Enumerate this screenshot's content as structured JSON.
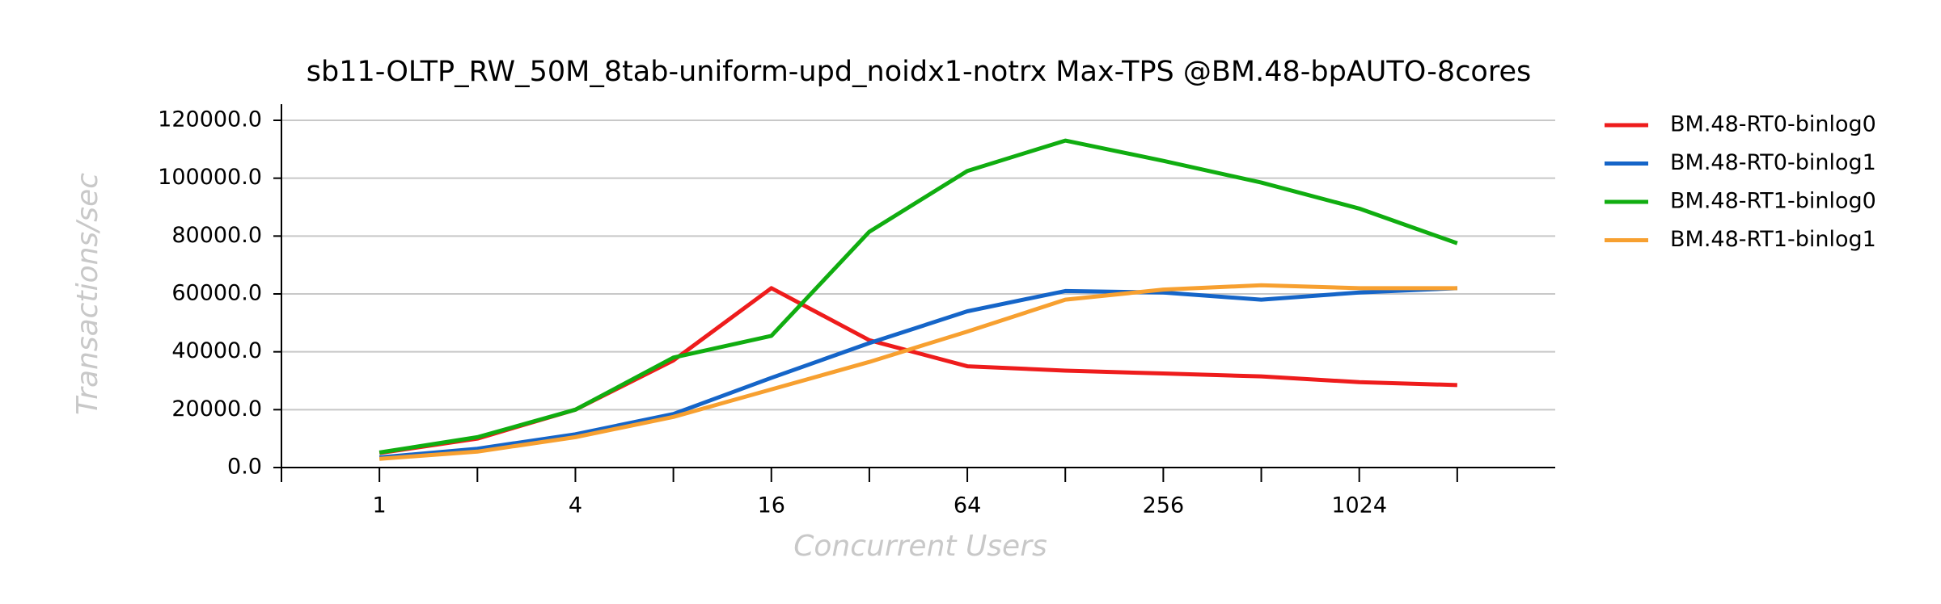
{
  "chart_data": {
    "type": "line",
    "title": "sb11-OLTP_RW_50M_8tab-uniform-upd_noidx1-notrx Max-TPS @BM.48-bpAUTO-8cores",
    "x_label": "Concurrent Users",
    "y_label": "Transactions/sec",
    "categories": [
      "1",
      null,
      "4",
      null,
      "16",
      null,
      "64",
      null,
      "256",
      null,
      "1024",
      null
    ],
    "series": [
      {
        "name": "BM.48-RT0-binlog0",
        "color": "#ee1c1c",
        "values": [
          5000,
          10000,
          20000,
          37000,
          62000,
          44000,
          35000,
          33500,
          32500,
          31500,
          29500,
          28500
        ]
      },
      {
        "name": "BM.48-RT0-binlog1",
        "color": "#1565c8",
        "values": [
          3500,
          6500,
          11500,
          18500,
          31000,
          43000,
          54000,
          61000,
          60500,
          58000,
          60500,
          62000
        ]
      },
      {
        "name": "BM.48-RT1-binlog0",
        "color": "#10ad10",
        "values": [
          5200,
          10500,
          20000,
          38000,
          45500,
          81500,
          102500,
          113000,
          106000,
          98500,
          89500,
          77500
        ]
      },
      {
        "name": "BM.48-RT1-binlog1",
        "color": "#f7a030",
        "values": [
          3000,
          5500,
          10500,
          17500,
          27000,
          36500,
          47000,
          58000,
          61500,
          63000,
          62000,
          62000
        ]
      }
    ],
    "ylim": [
      0,
      120000
    ],
    "yticks": [
      {
        "value": 0,
        "label": "0.0"
      },
      {
        "value": 20000,
        "label": "20000.0"
      },
      {
        "value": 40000,
        "label": "40000.0"
      },
      {
        "value": 60000,
        "label": "60000.0"
      },
      {
        "value": 80000,
        "label": "80000.0"
      },
      {
        "value": 100000,
        "label": "100000.0"
      },
      {
        "value": 120000,
        "label": "120000.0"
      }
    ],
    "grid": true,
    "legend": "right"
  }
}
